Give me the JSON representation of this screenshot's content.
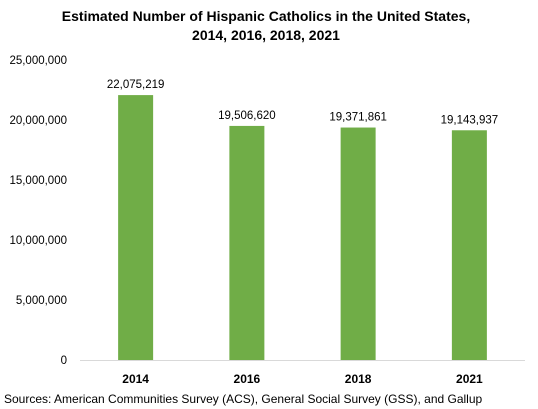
{
  "chart_data": {
    "type": "bar",
    "title_lines": [
      "Estimated Number of Hispanic Catholics in the United States,",
      "2014, 2016, 2018, 2021"
    ],
    "categories": [
      "2014",
      "2016",
      "2018",
      "2021"
    ],
    "values": [
      22075219,
      19506620,
      19371861,
      19143937
    ],
    "value_labels": [
      "22,075,219",
      "19,506,620",
      "19,371,861",
      "19,143,937"
    ],
    "ylim": [
      0,
      25000000
    ],
    "yticks": [
      0,
      5000000,
      10000000,
      15000000,
      20000000,
      25000000
    ],
    "ytick_labels": [
      "0",
      "5,000,000",
      "10,000,000",
      "15,000,000",
      "20,000,000",
      "25,000,000"
    ],
    "bar_color": "#70AD47",
    "grid": false,
    "legend": "none",
    "source": "Sources: American Communities Survey (ACS), General Social Survey (GSS), and Gallup"
  }
}
